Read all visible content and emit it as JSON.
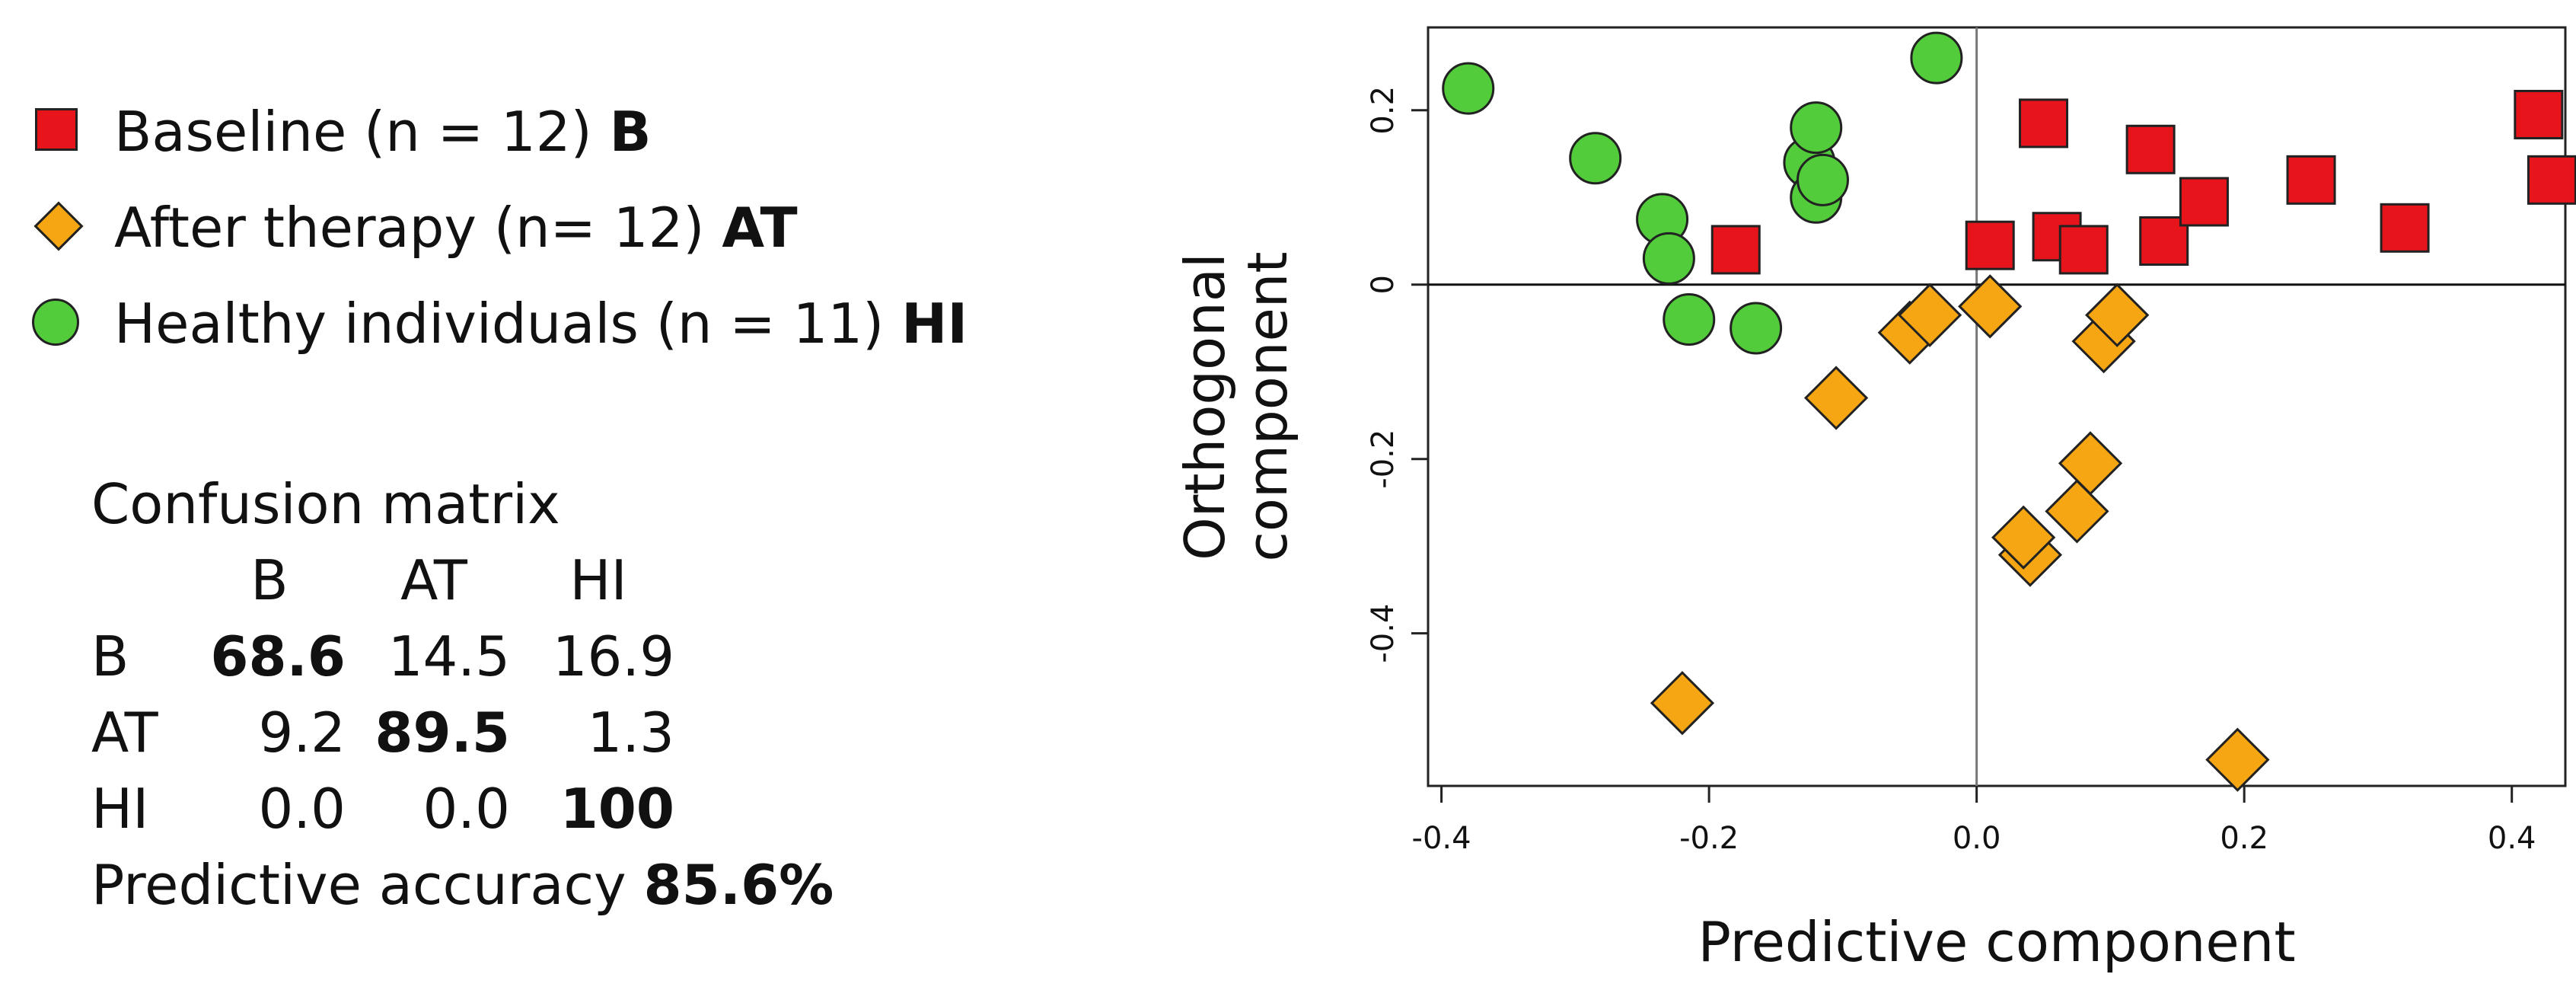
{
  "legend": {
    "items": [
      {
        "text": "Baseline (n = 12) ",
        "code": "B",
        "marker": "square",
        "color": "#e8141c"
      },
      {
        "text": "After therapy (n= 12) ",
        "code": "AT",
        "marker": "diamond",
        "color": "#f5a612"
      },
      {
        "text": "Healthy individuals (n = 11) ",
        "code": "HI",
        "marker": "circle",
        "color": "#52cc3a"
      }
    ]
  },
  "confusion": {
    "title": "Confusion matrix",
    "col_headers": [
      "B",
      "AT",
      "HI"
    ],
    "rows": [
      {
        "label": "B",
        "values": [
          "68.6",
          "14.5",
          "16.9"
        ],
        "bold_index": 0
      },
      {
        "label": "AT",
        "values": [
          "9.2",
          "89.5",
          "1.3"
        ],
        "bold_index": 1
      },
      {
        "label": "HI",
        "values": [
          "0.0",
          "0.0",
          "100"
        ],
        "bold_index": 2
      }
    ],
    "accuracy_label": "Predictive accuracy ",
    "accuracy_value": "85.6%"
  },
  "chart_data": {
    "type": "scatter",
    "xlabel": "Predictive component",
    "ylabel_line1": "Orthogonal",
    "ylabel_line2": "component",
    "xlim": [
      -0.41,
      0.44
    ],
    "ylim": [
      -0.575,
      0.295
    ],
    "xticks": [
      "-0.4",
      "-0.2",
      "0.0",
      "0.2",
      "0.4"
    ],
    "xtick_values": [
      -0.4,
      -0.2,
      0.0,
      0.2,
      0.4
    ],
    "yticks": [
      "-0.4",
      "-0.2",
      "0",
      "0.2"
    ],
    "ytick_values": [
      -0.4,
      -0.2,
      0.0,
      0.2
    ],
    "reference_lines": {
      "x": 0,
      "y": 0
    },
    "series": [
      {
        "name": "Baseline (n = 12) B",
        "marker": "square",
        "color": "#e8141c",
        "points": [
          [
            -0.18,
            0.04
          ],
          [
            0.01,
            0.045
          ],
          [
            0.05,
            0.185
          ],
          [
            0.06,
            0.055
          ],
          [
            0.08,
            0.04
          ],
          [
            0.13,
            0.155
          ],
          [
            0.14,
            0.05
          ],
          [
            0.17,
            0.095
          ],
          [
            0.25,
            0.12
          ],
          [
            0.32,
            0.065
          ],
          [
            0.42,
            0.195
          ],
          [
            0.43,
            0.12
          ]
        ]
      },
      {
        "name": "After therapy (n= 12) AT",
        "marker": "diamond",
        "color": "#f5a612",
        "points": [
          [
            -0.22,
            -0.48
          ],
          [
            -0.105,
            -0.13
          ],
          [
            -0.05,
            -0.055
          ],
          [
            -0.035,
            -0.035
          ],
          [
            0.01,
            -0.025
          ],
          [
            0.04,
            -0.31
          ],
          [
            0.035,
            -0.29
          ],
          [
            0.075,
            -0.26
          ],
          [
            0.085,
            -0.205
          ],
          [
            0.095,
            -0.065
          ],
          [
            0.105,
            -0.035
          ],
          [
            0.195,
            -0.545
          ]
        ]
      },
      {
        "name": "Healthy individuals (n = 11) HI",
        "marker": "circle",
        "color": "#52cc3a",
        "points": [
          [
            -0.38,
            0.225
          ],
          [
            -0.285,
            0.145
          ],
          [
            -0.235,
            0.075
          ],
          [
            -0.23,
            0.03
          ],
          [
            -0.215,
            -0.04
          ],
          [
            -0.165,
            -0.05
          ],
          [
            -0.125,
            0.14
          ],
          [
            -0.12,
            0.1
          ],
          [
            -0.12,
            0.18
          ],
          [
            -0.115,
            0.12
          ],
          [
            -0.03,
            0.26
          ]
        ]
      }
    ]
  }
}
